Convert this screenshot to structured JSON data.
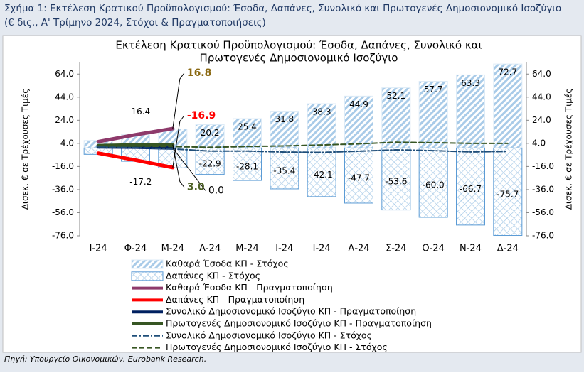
{
  "caption": "Σχήμα 1: Εκτέλεση Κρατικού Προϋπολογισμού: Έσοδα, Δαπάνες, Συνολικό και Πρωτογενές Δημοσιονομικό Ισοζύγιο (€ δις., Α' Τρίμηνο 2024, Στόχοι & Πραγματοποιήσεις)",
  "source": "Πηγή: Υπουργείο Οικονομικών, Eurobank Research.",
  "chart_data": {
    "type": "bar-line",
    "title": [
      "Εκτέλεση Κρατικού Προϋπολογισμού: Έσοδα, Δαπάνες, Συνολικό και",
      "Πρωτογενές Δημοσιονομικό Ισοζύγιο"
    ],
    "ylabel": "Δισεκ. € σε Τρέχουσες Τιμές",
    "y2label": "Δισεκ. € σε Τρέχουσες Τιμές",
    "categories": [
      "Ι-24",
      "Φ-24",
      "Μ-24",
      "Α-24",
      "Μ-24",
      "Ι-24",
      "Ι-24",
      "Α-24",
      "Σ-24",
      "Ο-24",
      "Ν-24",
      "Δ-24"
    ],
    "ylim": [
      -76,
      74
    ],
    "yticks": [
      {
        "value": 64,
        "label": "64.0"
      },
      {
        "value": 44,
        "label": "44.0"
      },
      {
        "value": 24,
        "label": "24.0"
      },
      {
        "value": 4,
        "label": "4.0"
      },
      {
        "value": -16,
        "label": "-16.0"
      },
      {
        "value": -36,
        "label": "-36.0"
      },
      {
        "value": -56,
        "label": "-56.0"
      },
      {
        "value": -76,
        "label": "-76.0"
      }
    ],
    "y2lim": [
      -76,
      74
    ],
    "y2ticks": [
      {
        "value": 64,
        "label": "64.0"
      },
      {
        "value": 44,
        "label": "44.0"
      },
      {
        "value": 24,
        "label": "24.0"
      },
      {
        "value": 4,
        "label": "4.0"
      },
      {
        "value": -16,
        "label": "-16.0"
      },
      {
        "value": -36,
        "label": "-36.0"
      },
      {
        "value": -56,
        "label": "-56.0"
      },
      {
        "value": -76,
        "label": "-76.0"
      }
    ],
    "grid": false,
    "series": [
      {
        "name": "Καθαρά Έσοδα ΚΠ - Στόχος",
        "kind": "bar",
        "style": "hatch",
        "color": "#9dc3e6",
        "values": [
          6.5,
          11.5,
          16.4,
          20.2,
          25.4,
          31.8,
          38.3,
          44.9,
          52.1,
          57.7,
          63.3,
          72.7
        ],
        "value_labels": [
          null,
          null,
          "16.4",
          "20.2",
          "25.4",
          "31.8",
          "38.3",
          "44.9",
          "52.1",
          "57.7",
          "63.3",
          "72.7"
        ]
      },
      {
        "name": "Δαπάνες ΚΠ - Στόχος",
        "kind": "bar",
        "style": "crosshatch",
        "color": "#5b9bd5",
        "values": [
          -5.5,
          -11.5,
          -17.2,
          -22.9,
          -28.1,
          -35.4,
          -42.1,
          -47.7,
          -53.6,
          -60.0,
          -66.7,
          -75.7
        ],
        "value_labels": [
          null,
          null,
          "-17.2",
          "-22.9",
          "-28.1",
          "-35.4",
          "-42.1",
          "-47.7",
          "-53.6",
          "-60.0",
          "-66.7",
          "-75.7"
        ]
      },
      {
        "name": "Καθαρά Έσοδα ΚΠ - Πραγματοποίηση",
        "kind": "line",
        "style": "solid",
        "color": "#8e3a6b",
        "values": [
          5.5,
          11.5,
          16.8,
          null,
          null,
          null,
          null,
          null,
          null,
          null,
          null,
          null
        ],
        "value_labels": [
          null,
          null,
          "16.8",
          null,
          null,
          null,
          null,
          null,
          null,
          null,
          null,
          null
        ],
        "label_color": "#8b6a14"
      },
      {
        "name": "Δαπάνες ΚΠ - Πραγματοποίηση",
        "kind": "line",
        "style": "solid",
        "color": "#ff0000",
        "values": [
          -4.5,
          -10.5,
          -16.9,
          null,
          null,
          null,
          null,
          null,
          null,
          null,
          null,
          null
        ],
        "value_labels": [
          null,
          null,
          "-16.9",
          null,
          null,
          null,
          null,
          null,
          null,
          null,
          null,
          null
        ],
        "label_color": "#ff0000"
      },
      {
        "name": "Συνολικό Δημοσιονομικό Ισοζύγιο ΚΠ - Πραγματοποίηση",
        "kind": "line",
        "style": "solid",
        "color": "#002060",
        "values": [
          1.0,
          0.8,
          0.0,
          null,
          null,
          null,
          null,
          null,
          null,
          null,
          null,
          null
        ],
        "value_labels": [
          null,
          null,
          "0.0",
          null,
          null,
          null,
          null,
          null,
          null,
          null,
          null,
          null
        ],
        "label_color": "#000000"
      },
      {
        "name": "Πρωτογενές Δημοσιονομικό Ισοζύγιο ΚΠ - Πραγματοποίηση",
        "kind": "line",
        "style": "solid",
        "color": "#375623",
        "values": [
          2.0,
          2.6,
          3.0,
          null,
          null,
          null,
          null,
          null,
          null,
          null,
          null,
          null
        ],
        "value_labels": [
          null,
          null,
          "3.0",
          null,
          null,
          null,
          null,
          null,
          null,
          null,
          null,
          null
        ],
        "label_color": "#4f6228"
      },
      {
        "name": "Συνολικό Δημοσιονομικό Ισοζύγιο ΚΠ - Στόχος",
        "kind": "line",
        "style": "dashdot",
        "color": "#1f4e79",
        "values": [
          1.0,
          0.3,
          -0.8,
          -2.7,
          -2.7,
          -3.5,
          -3.8,
          -2.8,
          -1.6,
          -2.3,
          -3.4,
          -3.0
        ]
      },
      {
        "name": "Πρωτογενές Δημοσιονομικό Ισοζύγιο ΚΠ - Στόχος",
        "kind": "line",
        "style": "dashed",
        "color": "#375623",
        "values": [
          2.0,
          1.6,
          1.2,
          0.6,
          1.3,
          1.8,
          2.6,
          3.6,
          5.0,
          4.6,
          4.0,
          4.0
        ]
      }
    ]
  }
}
